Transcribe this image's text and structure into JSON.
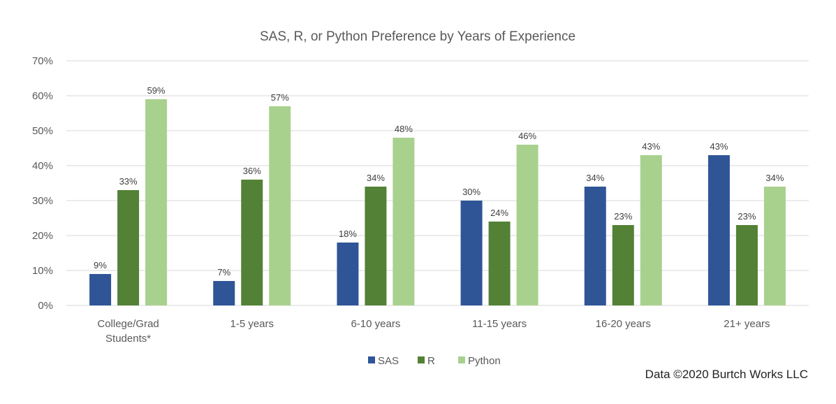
{
  "chart_data": {
    "type": "bar",
    "title": "SAS, R, or Python Preference by Years of Experience",
    "xlabel": "",
    "ylabel": "",
    "ylim": [
      0,
      70
    ],
    "yticks": [
      "0%",
      "10%",
      "20%",
      "30%",
      "40%",
      "50%",
      "60%",
      "70%"
    ],
    "grid": true,
    "legend_position": "bottom",
    "categories": [
      [
        "College/Grad",
        "Students*"
      ],
      [
        "1-5 years"
      ],
      [
        "6-10 years"
      ],
      [
        "11-15 years"
      ],
      [
        "16-20 years"
      ],
      [
        "21+ years"
      ]
    ],
    "series": [
      {
        "name": "SAS",
        "color": "#2F5597",
        "values": [
          9,
          7,
          18,
          30,
          34,
          43
        ],
        "labels": [
          "9%",
          "7%",
          "18%",
          "30%",
          "34%",
          "43%"
        ]
      },
      {
        "name": "R",
        "color": "#538135",
        "values": [
          33,
          36,
          34,
          24,
          23,
          23
        ],
        "labels": [
          "33%",
          "36%",
          "34%",
          "24%",
          "23%",
          "23%"
        ]
      },
      {
        "name": "Python",
        "color": "#A9D18E",
        "values": [
          59,
          57,
          48,
          46,
          43,
          34
        ],
        "labels": [
          "59%",
          "57%",
          "48%",
          "46%",
          "43%",
          "34%"
        ]
      }
    ]
  },
  "source_note": "Data ©2020 Burtch Works LLC"
}
